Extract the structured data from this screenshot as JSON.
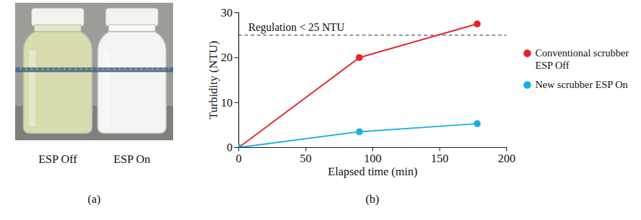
{
  "panel_a": {
    "label": "(a)",
    "bottle_labels": [
      "ESP Off",
      "ESP On"
    ]
  },
  "chart_data": {
    "type": "line",
    "panel_label": "(b)",
    "x_label": "Elapsed time (min)",
    "y_label": "Turbidity (NTU)",
    "xlim": [
      0,
      200
    ],
    "xticks": [
      0,
      50,
      100,
      150,
      200
    ],
    "ylim": [
      0,
      30
    ],
    "yticks": [
      0,
      10,
      20,
      30
    ],
    "x": [
      0,
      90,
      178
    ],
    "series": [
      {
        "name": "Conventional scrubber ESP Off",
        "color": "#e8202a",
        "values": [
          0,
          20,
          27.5
        ]
      },
      {
        "name": "New scrubber ESP On",
        "color": "#1aaee8",
        "values": [
          0,
          3.5,
          5.3
        ]
      }
    ],
    "marker": "circle",
    "legend": "right",
    "annotations": [
      {
        "text": "Regulation < 25 NTU",
        "y": 25,
        "line_style": "dashed"
      }
    ]
  }
}
